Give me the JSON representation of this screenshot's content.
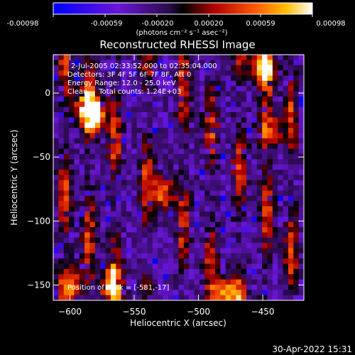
{
  "colorbar": {
    "ticks": [
      "-0.00098",
      "-0.00059",
      "-0.00020",
      "0.00020",
      "0.00059",
      "0.00098"
    ],
    "unit_label": "(photons cm⁻² s⁻¹ asec⁻²)"
  },
  "footer": {
    "timestamp": "30-Apr-2022 15:31"
  },
  "chart_data": {
    "type": "heatmap",
    "title": "Reconstructed RHESSI Image",
    "xlabel": "Heliocentric X (arcsec)",
    "ylabel": "Heliocentric Y (arcsec)",
    "xlim": [
      -613,
      -418
    ],
    "ylim": [
      -162,
      30
    ],
    "x_ticks": [
      -600,
      -550,
      -500,
      -450
    ],
    "y_ticks": [
      0,
      -50,
      -100,
      -150
    ],
    "color_range": [
      -0.00098,
      0.00098
    ],
    "colormap": "blue-purple-black-red-orange-yellow-white",
    "annotations": [
      "2-Jul-2005 02:33:52.000 to 02:35:04.000",
      "Detectors: 3F 4F 5F 6F 7F 8F, Att 0",
      "Energy Range: 12.0 - 25.0 keV",
      "Clean     Total counts: 1.24E+03"
    ],
    "peak_label": "Position of Peak = [-581,-17]",
    "peak": {
      "x": -581,
      "y": -17
    },
    "bright_features": [
      {
        "x": -580,
        "y": -17,
        "peak": 1.0
      },
      {
        "x": -587,
        "y": -10,
        "peak": 0.9
      },
      {
        "x": -478,
        "y": -158,
        "peak": 1.0
      },
      {
        "x": -600,
        "y": -148,
        "peak": 0.9
      },
      {
        "x": -568,
        "y": -150,
        "peak": 0.85
      },
      {
        "x": -450,
        "y": 22,
        "peak": 0.9
      },
      {
        "x": -445,
        "y": -30,
        "peak": 0.85
      },
      {
        "x": -528,
        "y": -78,
        "peak": 0.85
      }
    ]
  }
}
